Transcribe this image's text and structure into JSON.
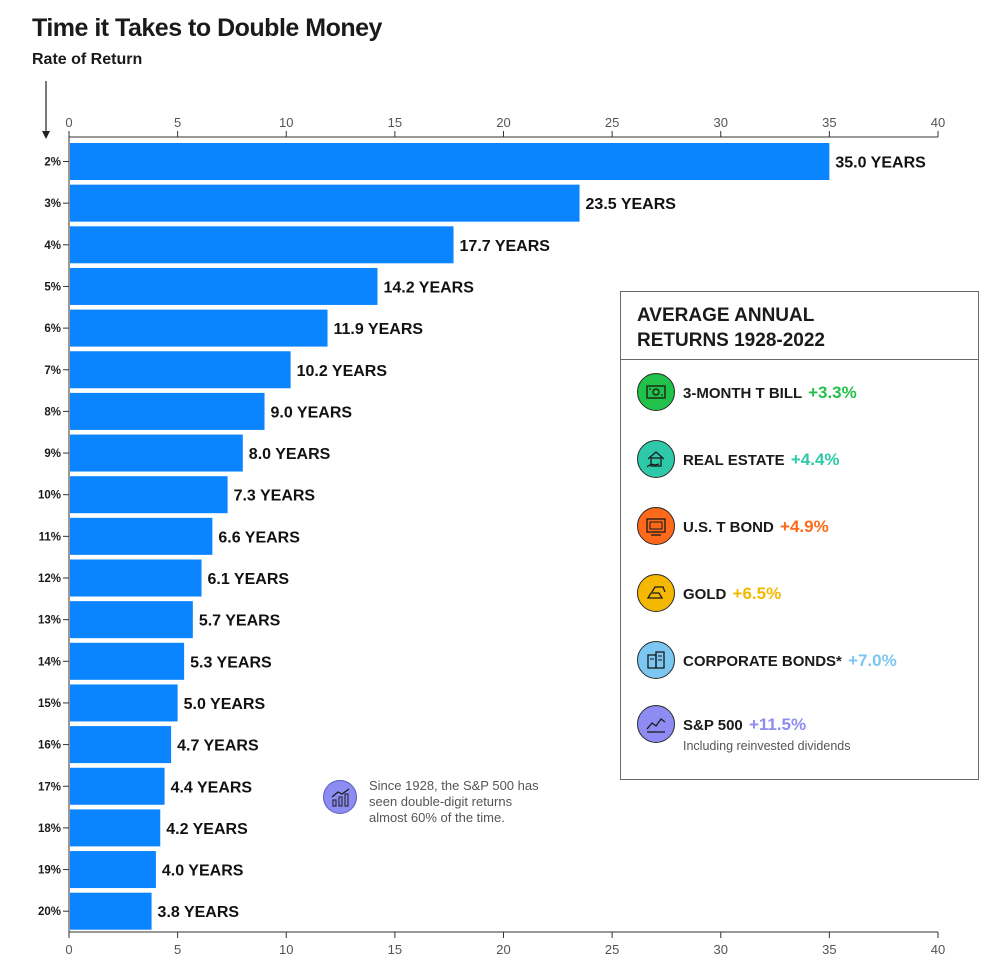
{
  "chart_data": {
    "type": "bar",
    "orientation": "horizontal",
    "title": "Time it Takes to Double Money",
    "ylabel": "Rate of Return",
    "xlim": [
      0,
      40
    ],
    "xticks": [
      0,
      5,
      10,
      15,
      20,
      25,
      30,
      35,
      40
    ],
    "categories": [
      "2%",
      "3%",
      "4%",
      "5%",
      "6%",
      "7%",
      "8%",
      "9%",
      "10%",
      "11%",
      "12%",
      "13%",
      "14%",
      "15%",
      "16%",
      "17%",
      "18%",
      "19%",
      "20%"
    ],
    "values": [
      35.0,
      23.5,
      17.7,
      14.2,
      11.9,
      10.2,
      9.0,
      8.0,
      7.3,
      6.6,
      6.1,
      5.7,
      5.3,
      5.0,
      4.7,
      4.4,
      4.2,
      4.0,
      3.8
    ],
    "labels": [
      "35.0 YEARS",
      "23.5 YEARS",
      "17.7 YEARS",
      "14.2 YEARS",
      "11.9 YEARS",
      "10.2 YEARS",
      "9.0 YEARS",
      "8.0 YEARS",
      "7.3 YEARS",
      "6.6 YEARS",
      "6.1 YEARS",
      "5.7 YEARS",
      "5.3 YEARS",
      "5.0 YEARS",
      "4.7 YEARS",
      "4.4 YEARS",
      "4.2 YEARS",
      "4.0 YEARS",
      "3.8 YEARS"
    ],
    "bar_color": "#0a84ff",
    "grid": false
  },
  "legend": {
    "title_line1": "AVERAGE ANNUAL",
    "title_line2": "RETURNS 1928-2022",
    "items": [
      {
        "label": "3-MONTH T BILL",
        "value": "+3.3%",
        "color": "#22c24a",
        "icon": "bill-icon"
      },
      {
        "label": "REAL ESTATE",
        "value": "+4.4%",
        "color": "#2ec9a8",
        "icon": "house-icon"
      },
      {
        "label": "U.S. T BOND",
        "value": "+4.9%",
        "color": "#ff6a1a",
        "icon": "bond-icon"
      },
      {
        "label": "GOLD",
        "value": "+6.5%",
        "color": "#f5b800",
        "icon": "gold-bar-icon"
      },
      {
        "label": "CORPORATE BONDS*",
        "value": "+7.0%",
        "color": "#7cc6f2",
        "icon": "building-icon"
      },
      {
        "label": "S&P 500",
        "value": "+11.5%",
        "color": "#8c8cf2",
        "icon": "chart-icon",
        "note": "Including reinvested dividends"
      }
    ]
  },
  "callout": {
    "line1": "Since 1928, the S&P 500 has",
    "line2": "seen double-digit returns",
    "line3": "almost 60% of the time.",
    "icon": "growth-chart-icon"
  }
}
